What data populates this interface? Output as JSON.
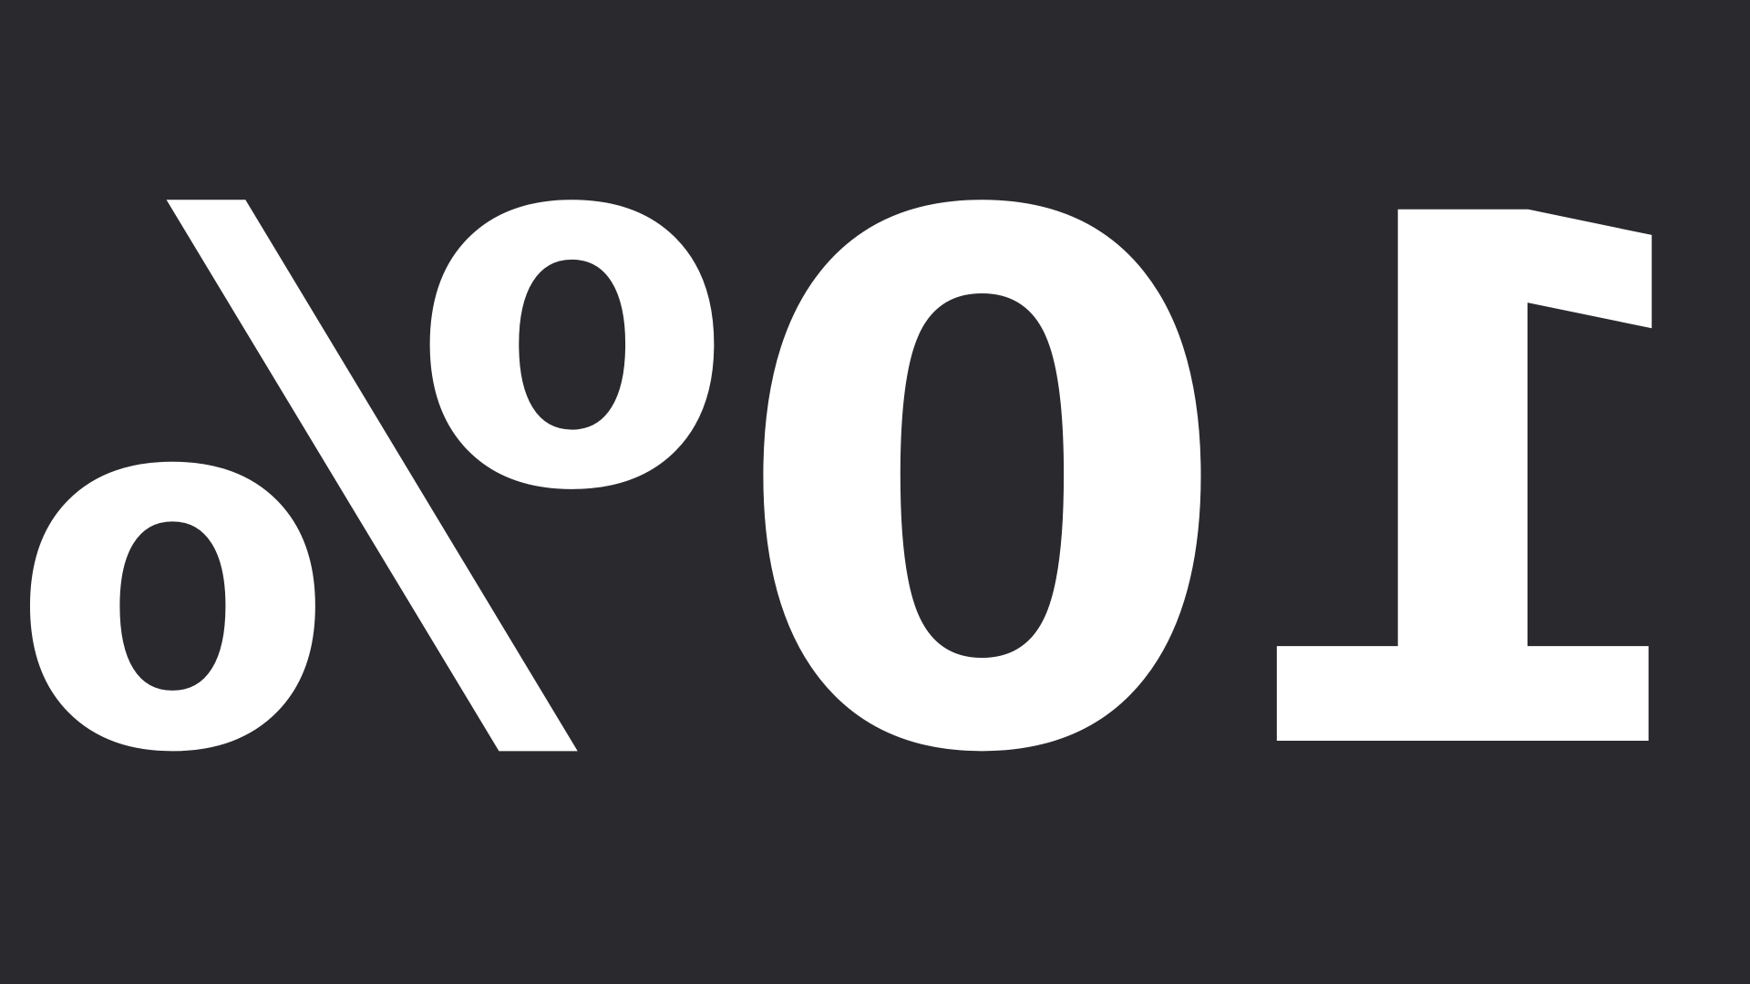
{
  "display": {
    "text": "10%"
  },
  "colors": {
    "background": "#2a292e",
    "text": "#ffffff"
  }
}
